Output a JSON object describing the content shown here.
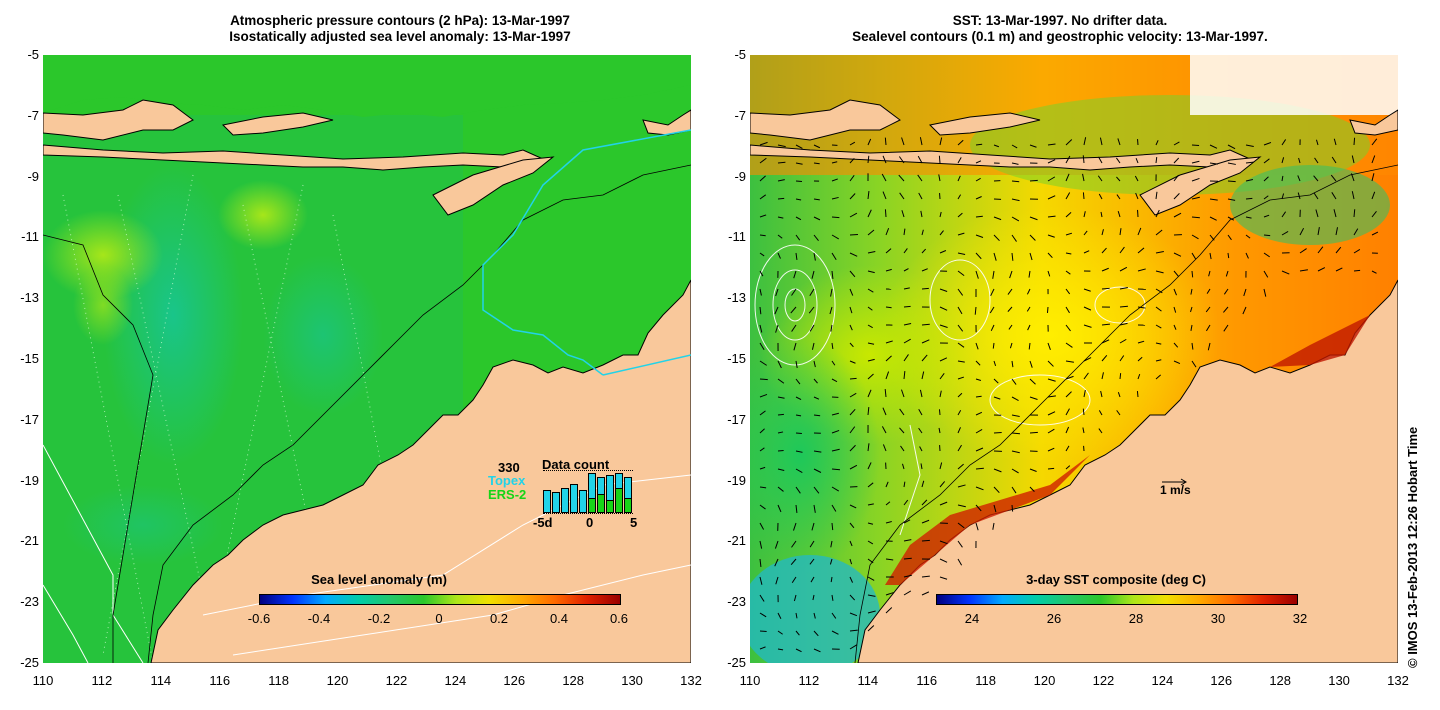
{
  "left_panel": {
    "title_line1": "Atmospheric pressure contours (2 hPa): 13-Mar-1997",
    "title_line2": "Isostatically adjusted sea level anomaly: 13-Mar-1997",
    "colorbar_title": "Sea level anomaly (m)",
    "colorbar_ticks": [
      "-0.6",
      "-0.4",
      "-0.2",
      "0",
      "0.2",
      "0.4",
      "0.6"
    ],
    "data_count": {
      "title": "Data count",
      "max_label": "330",
      "series": [
        {
          "name": "Topex",
          "color": "#22d3e8"
        },
        {
          "name": "ERS-2",
          "color": "#17d417"
        }
      ],
      "axis_labels": [
        "-5d",
        "0",
        "5"
      ],
      "topex_values": [
        0.55,
        0.5,
        0.6,
        0.7,
        0.55,
        0.95,
        0.85,
        0.9,
        0.95,
        0.85
      ],
      "ers2_values": [
        0,
        0,
        0,
        0,
        0,
        0.35,
        0.45,
        0.3,
        0.6,
        0.35
      ]
    }
  },
  "right_panel": {
    "title_line1": "SST: 13-Mar-1997. No drifter data.",
    "title_line2": "Sealevel contours (0.1 m) and geostrophic velocity: 13-Mar-1997.",
    "colorbar_title": "3-day SST composite (deg C)",
    "colorbar_ticks": [
      "24",
      "26",
      "28",
      "30",
      "32"
    ],
    "velocity_scale_label": "1 m/s"
  },
  "axes": {
    "y_labels": [
      "-5",
      "-7",
      "-9",
      "-11",
      "-13",
      "-15",
      "-17",
      "-19",
      "-21",
      "-23",
      "-25"
    ],
    "x_labels": [
      "110",
      "112",
      "114",
      "116",
      "118",
      "120",
      "122",
      "124",
      "126",
      "128",
      "130",
      "132"
    ],
    "lon_range": [
      110,
      132
    ],
    "lat_range": [
      -25,
      -5
    ]
  },
  "colors": {
    "land": "#f9c89b",
    "ocean_green": "#2bc72b",
    "coastline": "#000000",
    "track": "#22d3e8"
  },
  "copyright": "© IMOS 13-Feb-2013 12:26 Hobart Time"
}
